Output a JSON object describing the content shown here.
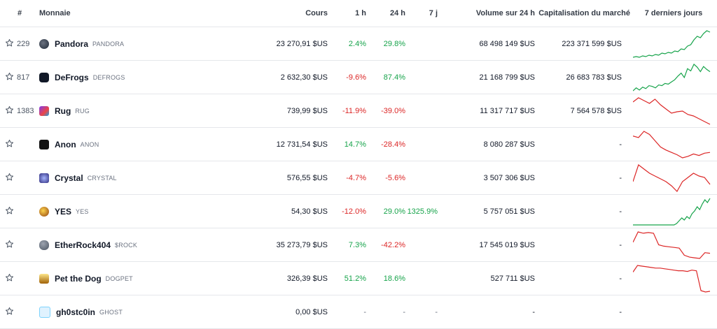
{
  "headers": {
    "hash": "#",
    "coin": "Monnaie",
    "price": "Cours",
    "h1": "1 h",
    "h24": "24 h",
    "d7": "7 j",
    "volume": "Volume sur 24 h",
    "mcap": "Capitalisation du marché",
    "spark": "7 derniers jours"
  },
  "colors": {
    "positive": "#16a34a",
    "negative": "#dc2626"
  },
  "rows": [
    {
      "rank": "229",
      "name": "Pandora",
      "symbol": "PANDORA",
      "icon": "pandora-logo-icon",
      "price": "23 270,91 $US",
      "h1": "2.4%",
      "h1_dir": "pos",
      "h24": "29.8%",
      "h24_dir": "pos",
      "d7": "",
      "d7_dir": "",
      "volume": "68 498 149 $US",
      "mcap": "223 371 599 $US",
      "trend": "up",
      "spark": [
        10,
        11,
        10,
        12,
        11,
        13,
        12,
        14,
        13,
        16,
        15,
        17,
        16,
        19,
        18,
        22,
        21,
        26,
        28,
        35,
        40,
        38,
        44,
        48,
        46
      ]
    },
    {
      "rank": "817",
      "name": "DeFrogs",
      "symbol": "DEFROGS",
      "icon": "defrogs-logo-icon",
      "price": "2 632,30 $US",
      "h1": "-9.6%",
      "h1_dir": "neg",
      "h24": "87.4%",
      "h24_dir": "pos",
      "d7": "",
      "d7_dir": "",
      "volume": "21 168 799 $US",
      "mcap": "26 683 783 $US",
      "trend": "up",
      "spark": [
        10,
        14,
        11,
        15,
        13,
        17,
        16,
        14,
        18,
        17,
        20,
        19,
        22,
        25,
        30,
        34,
        28,
        40,
        37,
        46,
        42,
        36,
        43,
        39,
        36
      ]
    },
    {
      "rank": "1383",
      "name": "Rug",
      "symbol": "RUG",
      "icon": "rug-logo-icon",
      "price": "739,99 $US",
      "h1": "-11.9%",
      "h1_dir": "neg",
      "h24": "-39.0%",
      "h24_dir": "neg",
      "d7": "",
      "d7_dir": "",
      "volume": "11 317 717 $US",
      "mcap": "7 564 578 $US",
      "trend": "down",
      "spark": [
        40,
        46,
        42,
        38,
        44,
        36,
        30,
        24,
        26,
        27,
        22,
        20,
        16,
        12,
        8
      ]
    },
    {
      "rank": "",
      "name": "Anon",
      "symbol": "ANON",
      "icon": "anon-logo-icon",
      "price": "12 731,54 $US",
      "h1": "14.7%",
      "h1_dir": "pos",
      "h24": "-28.4%",
      "h24_dir": "neg",
      "d7": "",
      "d7_dir": "",
      "volume": "8 080 287 $US",
      "mcap": "-",
      "trend": "down",
      "spark": [
        38,
        36,
        44,
        40,
        32,
        24,
        20,
        17,
        14,
        10,
        12,
        15,
        13,
        16,
        17
      ]
    },
    {
      "rank": "",
      "name": "Crystal",
      "symbol": "CRYSTAL",
      "icon": "crystal-logo-icon",
      "price": "576,55 $US",
      "h1": "-4.7%",
      "h1_dir": "neg",
      "h24": "-5.6%",
      "h24_dir": "neg",
      "d7": "",
      "d7_dir": "",
      "volume": "3 507 306 $US",
      "mcap": "-",
      "trend": "down",
      "spark": [
        22,
        46,
        40,
        34,
        30,
        26,
        22,
        16,
        8,
        22,
        28,
        34,
        30,
        28,
        18
      ]
    },
    {
      "rank": "",
      "name": "YES",
      "symbol": "YES",
      "icon": "yes-logo-icon",
      "price": "54,30 $US",
      "h1": "-12.0%",
      "h1_dir": "neg",
      "h24": "29.0%",
      "h24_dir": "pos",
      "d7": "1325.9%",
      "d7_dir": "pos",
      "volume": "5 757 051 $US",
      "mcap": "-",
      "trend": "up",
      "spark": [
        4,
        4,
        4,
        4,
        4,
        4,
        4,
        4,
        4,
        4,
        4,
        4,
        4,
        4,
        4,
        4,
        4,
        6,
        10,
        14,
        11,
        16,
        13,
        20,
        24,
        30,
        26,
        34,
        40,
        36,
        42
      ]
    },
    {
      "rank": "",
      "name": "EtherRock404",
      "symbol": "$ROCK",
      "icon": "etherrock-logo-icon",
      "price": "35 273,79 $US",
      "h1": "7.3%",
      "h1_dir": "pos",
      "h24": "-42.2%",
      "h24_dir": "neg",
      "d7": "",
      "d7_dir": "",
      "volume": "17 545 019 $US",
      "mcap": "-",
      "trend": "down",
      "spark": [
        30,
        46,
        44,
        45,
        44,
        26,
        24,
        23,
        22,
        21,
        10,
        7,
        6,
        5,
        14,
        13
      ]
    },
    {
      "rank": "",
      "name": "Pet the Dog",
      "symbol": "DOGPET",
      "icon": "pet-the-dog-logo-icon",
      "price": "326,39 $US",
      "h1": "51.2%",
      "h1_dir": "pos",
      "h24": "18.6%",
      "h24_dir": "pos",
      "d7": "",
      "d7_dir": "",
      "volume": "527 711 $US",
      "mcap": "-",
      "trend": "down",
      "spark": [
        34,
        44,
        43,
        42,
        41,
        40,
        40,
        39,
        38,
        37,
        36,
        36,
        35,
        37,
        36,
        6,
        4,
        5
      ]
    },
    {
      "rank": "",
      "name": "gh0stc0in",
      "symbol": "GHOST",
      "icon": "gh0stc0in-logo-icon",
      "price": "0,00 $US",
      "h1": "-",
      "h1_dir": "dash",
      "h24": "-",
      "h24_dir": "dash",
      "d7": "-",
      "d7_dir": "dash",
      "volume": "-",
      "mcap": "-",
      "trend": "none",
      "spark": []
    }
  ]
}
